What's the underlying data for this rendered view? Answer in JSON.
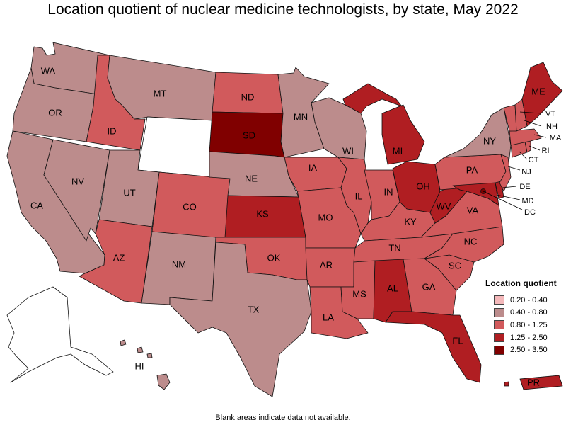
{
  "title": "Location quotient of nuclear medicine technologists, by state, May 2022",
  "note": "Blank areas indicate data not available.",
  "legend": {
    "title": "Location quotient",
    "bins": [
      {
        "label": "0.20 - 0.40",
        "color": "#f4b8ba"
      },
      {
        "label": "0.40 - 0.80",
        "color": "#bc8c8c"
      },
      {
        "label": "0.80 - 1.25",
        "color": "#d15a5c"
      },
      {
        "label": "1.25 - 2.50",
        "color": "#b01e22"
      },
      {
        "label": "2.50 - 3.50",
        "color": "#800000"
      }
    ],
    "no_data_color": "#ffffff"
  },
  "states": {
    "WA": "0.40 - 0.80",
    "OR": "0.40 - 0.80",
    "CA": "0.40 - 0.80",
    "NV": "0.40 - 0.80",
    "ID": "0.80 - 1.25",
    "MT": "0.40 - 0.80",
    "WY": "",
    "UT": "0.40 - 0.80",
    "AZ": "0.80 - 1.25",
    "CO": "0.80 - 1.25",
    "NM": "0.40 - 0.80",
    "ND": "0.80 - 1.25",
    "SD": "2.50 - 3.50",
    "NE": "0.40 - 0.80",
    "KS": "1.25 - 2.50",
    "OK": "0.80 - 1.25",
    "TX": "0.40 - 0.80",
    "MN": "0.40 - 0.80",
    "IA": "0.80 - 1.25",
    "MO": "0.80 - 1.25",
    "AR": "0.80 - 1.25",
    "LA": "0.80 - 1.25",
    "WI": "0.40 - 0.80",
    "IL": "0.80 - 1.25",
    "MI": "1.25 - 2.50",
    "IN": "0.80 - 1.25",
    "OH": "1.25 - 2.50",
    "KY": "0.80 - 1.25",
    "TN": "0.80 - 1.25",
    "MS": "0.80 - 1.25",
    "AL": "1.25 - 2.50",
    "GA": "0.80 - 1.25",
    "FL": "1.25 - 2.50",
    "SC": "0.80 - 1.25",
    "NC": "0.80 - 1.25",
    "VA": "0.80 - 1.25",
    "WV": "1.25 - 2.50",
    "MD": "1.25 - 2.50",
    "DE": "1.25 - 2.50",
    "DC": "2.50 - 3.50",
    "PA": "0.80 - 1.25",
    "NJ": "0.80 - 1.25",
    "NY": "0.40 - 0.80",
    "CT": "0.80 - 1.25",
    "RI": "0.80 - 1.25",
    "MA": "0.80 - 1.25",
    "VT": "0.80 - 1.25",
    "NH": "0.80 - 1.25",
    "ME": "1.25 - 2.50",
    "AK": "",
    "HI": "0.40 - 0.80",
    "PR": "1.25 - 2.50"
  }
}
